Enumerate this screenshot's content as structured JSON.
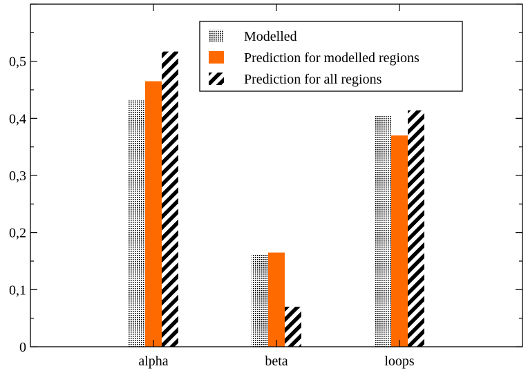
{
  "chart_data": {
    "type": "bar",
    "categories": [
      "alpha",
      "beta",
      "loops"
    ],
    "series": [
      {
        "name": "Modelled",
        "values": [
          0.432,
          0.162,
          0.405
        ],
        "pattern": "dots",
        "color": "#000000"
      },
      {
        "name": "Prediction for modelled regions",
        "values": [
          0.465,
          0.165,
          0.37
        ],
        "pattern": "solid",
        "color": "#ff6a00"
      },
      {
        "name": "Prediction for all regions",
        "values": [
          0.517,
          0.07,
          0.414
        ],
        "pattern": "stripes",
        "color": "#000000"
      }
    ],
    "xlim": [
      0,
      4
    ],
    "ylim": [
      0,
      0.6
    ],
    "y_major_ticks": [
      0,
      0.1,
      0.2,
      0.3,
      0.4,
      0.5
    ],
    "y_tick_labels": [
      "0",
      "0,1",
      "0,2",
      "0,3",
      "0,4",
      "0,5"
    ],
    "legend_position": "top-right",
    "grid": false,
    "title": "",
    "xlabel": "",
    "ylabel": ""
  }
}
